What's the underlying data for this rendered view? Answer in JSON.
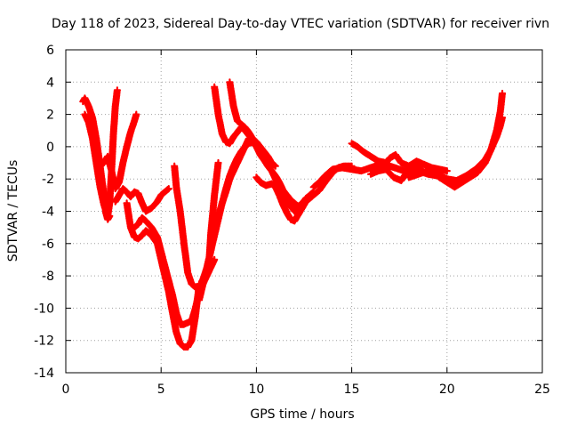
{
  "chart_data": {
    "type": "scatter",
    "title": "Day 118 of 2023, Sidereal Day-to-day VTEC variation (SDTVAR) for receiver rivn",
    "xlabel": "GPS time / hours",
    "ylabel": "SDTVAR / TECUs",
    "xlim": [
      0,
      25
    ],
    "ylim": [
      -14,
      6
    ],
    "x_ticks": [
      0,
      5,
      10,
      15,
      20,
      25
    ],
    "y_ticks": [
      -14,
      -12,
      -10,
      -8,
      -6,
      -4,
      -2,
      0,
      2,
      4,
      6
    ],
    "grid": true,
    "marker": "plus",
    "color": "#ff0000",
    "series": [
      {
        "x": [
          0.9,
          1.0,
          1.2,
          1.4,
          1.6,
          1.8,
          2.0,
          2.1,
          2.2,
          2.3
        ],
        "y": [
          2.8,
          3.0,
          2.5,
          1.8,
          0.5,
          -1.2,
          -3.0,
          -4.1,
          -4.5,
          -4.3
        ]
      },
      {
        "x": [
          1.0,
          1.2,
          1.4,
          1.6,
          1.8,
          2.0,
          2.2,
          2.3,
          2.4,
          2.5,
          2.6,
          2.7
        ],
        "y": [
          2.0,
          1.5,
          0.5,
          -1.0,
          -2.5,
          -3.6,
          -4.3,
          -3.5,
          -1.5,
          0.8,
          2.5,
          3.5
        ]
      },
      {
        "x": [
          1.8,
          2.0,
          2.2,
          2.4,
          2.6,
          2.8,
          3.0,
          3.2,
          3.4,
          3.6,
          3.7
        ],
        "y": [
          -1.2,
          -1.0,
          -0.6,
          -1.5,
          -2.6,
          -2.2,
          -1.0,
          0.0,
          0.9,
          1.6,
          2.0
        ]
      },
      {
        "x": [
          2.6,
          2.8,
          3.0,
          3.2,
          3.4,
          3.6,
          3.8,
          4.0,
          4.2,
          4.5,
          4.8,
          5.0,
          5.2,
          5.4
        ],
        "y": [
          -3.4,
          -3.0,
          -2.6,
          -2.8,
          -3.1,
          -2.8,
          -2.9,
          -3.5,
          -4.0,
          -3.8,
          -3.4,
          -3.0,
          -2.8,
          -2.6
        ]
      },
      {
        "x": [
          3.2,
          3.4,
          3.6,
          3.8,
          4.0,
          4.2,
          4.5,
          4.8,
          5.0,
          5.2,
          5.4,
          5.6,
          5.8,
          6.0,
          6.2,
          6.4,
          6.6,
          6.8,
          7.0
        ],
        "y": [
          -3.5,
          -5.0,
          -5.6,
          -5.7,
          -5.5,
          -5.2,
          -5.5,
          -6.0,
          -7.0,
          -8.0,
          -9.0,
          -10.3,
          -11.5,
          -12.2,
          -12.4,
          -12.4,
          -12.0,
          -10.5,
          -8.5
        ]
      },
      {
        "x": [
          3.6,
          3.8,
          4.0,
          4.2,
          4.5,
          4.8,
          5.0,
          5.2,
          5.4,
          5.6,
          5.8,
          6.0,
          6.2,
          6.4,
          6.6,
          6.8,
          7.0,
          7.2,
          7.4,
          7.6,
          7.8
        ],
        "y": [
          -5.0,
          -4.8,
          -4.4,
          -4.6,
          -5.0,
          -5.6,
          -6.5,
          -7.4,
          -8.3,
          -9.2,
          -10.3,
          -11.0,
          -11.0,
          -10.9,
          -10.8,
          -10.0,
          -9.0,
          -8.5,
          -8.0,
          -7.5,
          -7.0
        ]
      },
      {
        "x": [
          5.7,
          5.8,
          6.0,
          6.2,
          6.4,
          6.6,
          6.8,
          7.0,
          7.2,
          7.4,
          7.6,
          7.8,
          8.0,
          8.2,
          8.4,
          8.6,
          8.8,
          9.0,
          9.2,
          9.4,
          9.6,
          9.8,
          10.0,
          10.2,
          10.4
        ],
        "y": [
          -1.2,
          -2.5,
          -4.0,
          -6.0,
          -7.8,
          -8.5,
          -8.7,
          -8.8,
          -8.2,
          -7.5,
          -6.5,
          -5.3,
          -4.3,
          -3.5,
          -2.8,
          -2.0,
          -1.5,
          -1.0,
          -0.5,
          0.0,
          0.5,
          0.3,
          0.0,
          -0.3,
          -0.8
        ]
      },
      {
        "x": [
          7.0,
          7.2,
          7.4,
          7.6,
          7.8,
          8.0,
          8.2,
          8.4,
          8.6,
          8.8,
          9.0,
          9.2,
          9.4,
          9.6,
          9.8,
          10.0,
          10.2,
          10.5,
          10.8,
          11.0,
          11.2,
          11.4,
          11.6,
          11.8,
          12.0,
          12.2,
          12.4,
          12.6,
          12.8,
          13.0
        ],
        "y": [
          -9.5,
          -8.5,
          -7.5,
          -6.5,
          -5.5,
          -4.5,
          -3.5,
          -2.6,
          -1.8,
          -1.2,
          -0.7,
          -0.3,
          0.0,
          0.2,
          0.3,
          0.0,
          -0.5,
          -1.0,
          -1.5,
          -2.0,
          -2.5,
          -3.0,
          -3.4,
          -3.7,
          -4.0,
          -3.9,
          -3.5,
          -3.2,
          -3.0,
          -2.8
        ]
      },
      {
        "x": [
          7.5,
          7.6,
          7.8,
          8.0
        ],
        "y": [
          -7.5,
          -5.5,
          -3.0,
          -1.0
        ]
      },
      {
        "x": [
          7.8,
          8.0,
          8.2,
          8.4,
          8.6,
          8.8,
          9.0,
          9.2,
          9.4,
          9.6,
          9.8,
          10.0,
          10.2,
          10.4,
          10.6,
          10.8,
          11.0,
          11.2,
          11.4,
          11.6,
          11.8,
          12.0,
          12.2,
          12.4,
          12.6
        ],
        "y": [
          3.7,
          2.0,
          0.8,
          0.3,
          0.2,
          0.6,
          0.9,
          1.2,
          1.0,
          0.7,
          0.4,
          0.1,
          -0.4,
          -0.8,
          -1.2,
          -1.5,
          -1.8,
          -2.2,
          -2.7,
          -3.0,
          -3.3,
          -3.5,
          -3.7,
          -3.5,
          -3.3
        ]
      },
      {
        "x": [
          8.6,
          8.8,
          9.0,
          9.2,
          9.4,
          9.6,
          9.8,
          10.0,
          10.2,
          10.4,
          10.6,
          10.8,
          11.0
        ],
        "y": [
          4.0,
          2.5,
          1.6,
          1.4,
          1.2,
          0.9,
          0.5,
          0.3,
          0.0,
          -0.3,
          -0.6,
          -1.0,
          -1.2
        ]
      },
      {
        "x": [
          10.0,
          10.2,
          10.5,
          10.8,
          11.0,
          11.2,
          11.4,
          11.6,
          11.8,
          12.0,
          12.2,
          12.4,
          12.6,
          12.8,
          13.0,
          13.3,
          13.6,
          14.0,
          14.3,
          14.6,
          15.0
        ],
        "y": [
          -1.9,
          -2.2,
          -2.4,
          -2.3,
          -2.5,
          -3.0,
          -3.6,
          -4.1,
          -4.5,
          -4.6,
          -4.2,
          -3.8,
          -3.4,
          -3.2,
          -3.0,
          -2.7,
          -2.2,
          -1.6,
          -1.3,
          -1.2,
          -1.2
        ]
      },
      {
        "x": [
          13.0,
          13.3,
          13.6,
          14.0,
          14.5,
          15.0,
          15.5,
          16.0,
          16.5,
          17.0,
          17.5,
          18.0,
          18.5,
          19.0,
          19.5,
          20.0,
          20.5
        ],
        "y": [
          -2.5,
          -2.2,
          -1.8,
          -1.4,
          -1.3,
          -1.4,
          -1.5,
          -1.3,
          -1.1,
          -1.2,
          -1.4,
          -1.6,
          -1.5,
          -1.7,
          -1.8,
          -2.0,
          -2.2
        ]
      },
      {
        "x": [
          15.0,
          15.3,
          15.6,
          16.0,
          16.4,
          16.8,
          17.0,
          17.3,
          17.6,
          18.0,
          18.4,
          18.8,
          19.2,
          19.6,
          20.0
        ],
        "y": [
          0.2,
          0.0,
          -0.3,
          -0.6,
          -0.9,
          -1.0,
          -0.7,
          -0.5,
          -1.0,
          -1.2,
          -0.9,
          -1.1,
          -1.3,
          -1.4,
          -1.5
        ]
      },
      {
        "x": [
          16.0,
          16.4,
          16.8,
          17.2,
          17.6,
          18.0,
          18.4,
          18.8,
          19.2,
          19.6,
          20.0,
          20.4,
          20.8,
          21.2,
          21.6,
          22.0,
          22.3,
          22.6,
          22.8,
          22.9
        ],
        "y": [
          -1.7,
          -1.5,
          -1.4,
          -1.9,
          -2.1,
          -1.4,
          -1.1,
          -1.6,
          -1.5,
          -1.9,
          -2.2,
          -2.5,
          -2.2,
          -1.9,
          -1.6,
          -1.0,
          -0.2,
          1.0,
          2.2,
          3.3
        ]
      },
      {
        "x": [
          18.0,
          18.5,
          19.0,
          19.5,
          20.0,
          20.5,
          21.0,
          21.5,
          22.0,
          22.3,
          22.6,
          22.8,
          22.9
        ],
        "y": [
          -1.9,
          -1.7,
          -1.5,
          -1.7,
          -2.0,
          -2.1,
          -1.8,
          -1.4,
          -0.8,
          -0.2,
          0.6,
          1.3,
          1.8
        ]
      }
    ]
  }
}
